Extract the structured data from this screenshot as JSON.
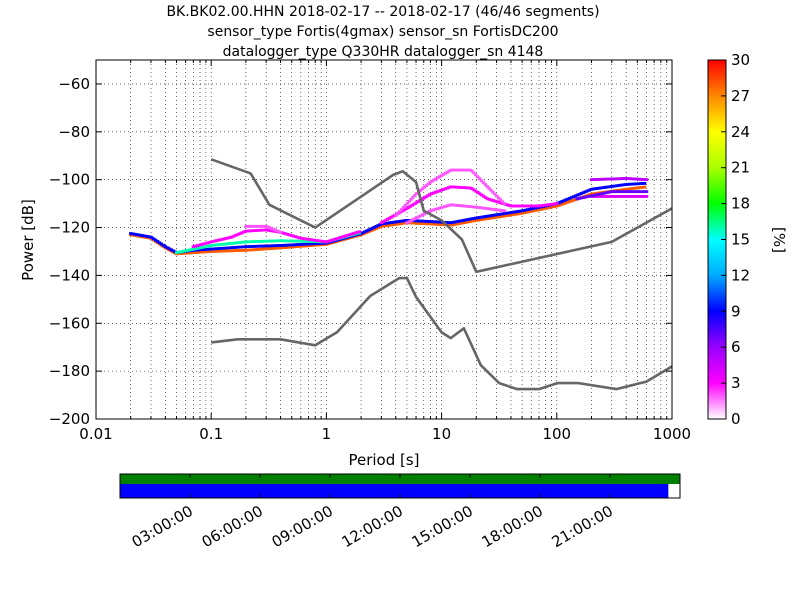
{
  "chart_data": [
    {
      "type": "heatmap",
      "title_lines": [
        "BK.BK02.00.HHN   2018-02-17 -- 2018-02-17  (46/46 segments)",
        "sensor_type Fortis(4gmax) sensor_sn FortisDC200",
        "datalogger_type Q330HR datalogger_sn 4148"
      ],
      "xlabel": "Period [s]",
      "ylabel": "Power [dB]",
      "x_scale": "log",
      "xlim": [
        0.01,
        1000
      ],
      "ylim": [
        -200,
        -50
      ],
      "x_ticks": [
        {
          "v": 0.01,
          "label": "0.01"
        },
        {
          "v": 0.1,
          "label": "0.1"
        },
        {
          "v": 1,
          "label": "1"
        },
        {
          "v": 10,
          "label": "10"
        },
        {
          "v": 100,
          "label": "100"
        },
        {
          "v": 1000,
          "label": "1000"
        }
      ],
      "y_ticks": [
        {
          "v": -60,
          "label": "−60"
        },
        {
          "v": -80,
          "label": "−80"
        },
        {
          "v": -100,
          "label": "−100"
        },
        {
          "v": -120,
          "label": "−120"
        },
        {
          "v": -140,
          "label": "−140"
        },
        {
          "v": -160,
          "label": "−160"
        },
        {
          "v": -180,
          "label": "−180"
        },
        {
          "v": -200,
          "label": "−200"
        }
      ],
      "grid": true,
      "colorbar": {
        "label": "[%]",
        "range": [
          0,
          30
        ],
        "ticks": [
          {
            "v": 0,
            "label": "0"
          },
          {
            "v": 3,
            "label": "3"
          },
          {
            "v": 6,
            "label": "6"
          },
          {
            "v": 9,
            "label": "9"
          },
          {
            "v": 12,
            "label": "12"
          },
          {
            "v": 15,
            "label": "15"
          },
          {
            "v": 18,
            "label": "18"
          },
          {
            "v": 21,
            "label": "21"
          },
          {
            "v": 24,
            "label": "24"
          },
          {
            "v": 27,
            "label": "27"
          },
          {
            "v": 30,
            "label": "30"
          }
        ],
        "colors": [
          "#ffffff",
          "#ff00ff",
          "#9900ff",
          "#0000ff",
          "#00aaff",
          "#00ffff",
          "#00ff00",
          "#aaff00",
          "#ffff00",
          "#ff8800",
          "#ff0000"
        ]
      },
      "noise_models": {
        "color": "#666666",
        "nhnm": [
          [
            0.1,
            -91.5
          ],
          [
            0.22,
            -97.4
          ],
          [
            0.32,
            -110.5
          ],
          [
            0.8,
            -120
          ],
          [
            3.8,
            -98
          ],
          [
            4.6,
            -96.5
          ],
          [
            6,
            -101
          ],
          [
            7,
            -113
          ],
          [
            10,
            -117
          ],
          [
            15,
            -125
          ],
          [
            20,
            -138.5
          ],
          [
            300,
            -126
          ],
          [
            1000,
            -112
          ]
        ],
        "nlnm": [
          [
            0.1,
            -168
          ],
          [
            0.17,
            -166.7
          ],
          [
            0.4,
            -166.7
          ],
          [
            0.8,
            -169.2
          ],
          [
            1.24,
            -163.7
          ],
          [
            2.4,
            -148.6
          ],
          [
            4.3,
            -141.1
          ],
          [
            5,
            -141.1
          ],
          [
            6,
            -149
          ],
          [
            10,
            -163.8
          ],
          [
            12,
            -166.2
          ],
          [
            15.6,
            -162.1
          ],
          [
            21.9,
            -177.5
          ],
          [
            31.6,
            -185
          ],
          [
            45,
            -187.5
          ],
          [
            70,
            -187.5
          ],
          [
            101,
            -185
          ],
          [
            154,
            -185
          ],
          [
            328,
            -187.5
          ],
          [
            600,
            -184.4
          ],
          [
            1000,
            -178
          ]
        ]
      },
      "psd_bands": [
        {
          "pct": 28,
          "points": [
            [
              0.02,
              -123
            ],
            [
              0.03,
              -124.5
            ],
            [
              0.04,
              -128.5
            ],
            [
              0.05,
              -131
            ],
            [
              0.07,
              -130.5
            ],
            [
              0.1,
              -130
            ],
            [
              0.2,
              -129.5
            ],
            [
              0.4,
              -128.5
            ],
            [
              1,
              -127
            ],
            [
              2,
              -123
            ],
            [
              3,
              -119.5
            ],
            [
              5,
              -118
            ],
            [
              8,
              -118.5
            ],
            [
              12,
              -119
            ],
            [
              20,
              -117
            ],
            [
              50,
              -114
            ],
            [
              100,
              -111
            ],
            [
              200,
              -106
            ],
            [
              400,
              -104
            ],
            [
              600,
              -103
            ]
          ]
        },
        {
          "pct": 9,
          "points": [
            [
              0.02,
              -122.5
            ],
            [
              0.03,
              -124
            ],
            [
              0.04,
              -128
            ],
            [
              0.05,
              -130.5
            ],
            [
              0.07,
              -129.5
            ],
            [
              0.1,
              -129
            ],
            [
              0.2,
              -128
            ],
            [
              0.4,
              -127.5
            ],
            [
              1,
              -126.5
            ],
            [
              2,
              -122.5
            ],
            [
              3,
              -118.5
            ],
            [
              5,
              -117
            ],
            [
              8,
              -117.5
            ],
            [
              12,
              -118
            ],
            [
              20,
              -116
            ],
            [
              50,
              -113
            ],
            [
              100,
              -110
            ],
            [
              200,
              -104
            ],
            [
              400,
              -102
            ],
            [
              600,
              -101.5
            ]
          ]
        },
        {
          "pct": 16,
          "points": [
            [
              0.05,
              -130.5
            ],
            [
              0.1,
              -127.5
            ],
            [
              0.2,
              -126
            ],
            [
              0.4,
              -125.5
            ],
            [
              1,
              -126
            ],
            [
              2,
              -122
            ]
          ]
        },
        {
          "pct": 3,
          "points": [
            [
              0.07,
              -128
            ],
            [
              0.1,
              -126
            ],
            [
              0.15,
              -124
            ],
            [
              0.2,
              -121.5
            ],
            [
              0.3,
              -121
            ],
            [
              0.4,
              -122
            ],
            [
              0.6,
              -124.5
            ],
            [
              1,
              -126
            ],
            [
              2,
              -121.5
            ]
          ]
        },
        {
          "pct": 2,
          "points": [
            [
              0.2,
              -119.5
            ],
            [
              0.3,
              -119.5
            ],
            [
              0.4,
              -122
            ]
          ]
        },
        {
          "pct": 3,
          "points": [
            [
              3,
              -118
            ],
            [
              5,
              -112
            ],
            [
              8,
              -106
            ],
            [
              12,
              -103
            ],
            [
              18,
              -103.5
            ],
            [
              25,
              -108
            ],
            [
              40,
              -111
            ],
            [
              70,
              -111
            ],
            [
              100,
              -110
            ]
          ]
        },
        {
          "pct": 2,
          "points": [
            [
              4,
              -115
            ],
            [
              6,
              -106
            ],
            [
              8,
              -101
            ],
            [
              12,
              -96
            ],
            [
              18,
              -96
            ],
            [
              25,
              -103
            ],
            [
              35,
              -110
            ]
          ]
        },
        {
          "pct": 2,
          "points": [
            [
              5,
              -118
            ],
            [
              8,
              -113
            ],
            [
              12,
              -110.5
            ],
            [
              20,
              -111.5
            ],
            [
              35,
              -113
            ]
          ]
        },
        {
          "pct": 5,
          "points": [
            [
              200,
              -100
            ],
            [
              400,
              -99.5
            ],
            [
              600,
              -100
            ]
          ]
        },
        {
          "pct": 4,
          "points": [
            [
              200,
              -107
            ],
            [
              400,
              -107
            ],
            [
              600,
              -107
            ]
          ]
        },
        {
          "pct": 7,
          "points": [
            [
              150,
              -108
            ],
            [
              300,
              -105
            ],
            [
              600,
              -105
            ]
          ]
        }
      ]
    },
    {
      "type": "bar",
      "x_tick_labels": [
        "03:00:00",
        "06:00:00",
        "09:00:00",
        "12:00:00",
        "15:00:00",
        "18:00:00",
        "21:00:00"
      ],
      "x_tick_hours": [
        3,
        6,
        9,
        12,
        15,
        18,
        21
      ],
      "xlim_hours": [
        0,
        24
      ],
      "rows": [
        {
          "color": "#008000",
          "coverage_hours": [
            0,
            24
          ]
        },
        {
          "color": "#0000ff",
          "coverage_hours": [
            0,
            23.5
          ]
        }
      ]
    }
  ]
}
